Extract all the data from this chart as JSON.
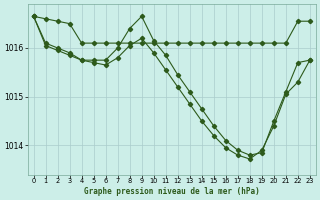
{
  "title": "Graphe pression niveau de la mer (hPa)",
  "bg_color": "#cceee8",
  "grid_color": "#aacccc",
  "line_color": "#2d5a1b",
  "xlim": [
    -0.5,
    23.5
  ],
  "ylim": [
    1013.4,
    1016.9
  ],
  "yticks": [
    1014,
    1015,
    1016
  ],
  "xticks": [
    0,
    1,
    2,
    3,
    4,
    5,
    6,
    7,
    8,
    9,
    10,
    11,
    12,
    13,
    14,
    15,
    16,
    17,
    18,
    19,
    20,
    21,
    22,
    23
  ],
  "series1": {
    "x": [
      0,
      1,
      2,
      3,
      4,
      5,
      6,
      7,
      8,
      9,
      10,
      11,
      12,
      13,
      14,
      15,
      16,
      17,
      18,
      19,
      20,
      21,
      22,
      23
    ],
    "y": [
      1016.65,
      1016.6,
      1016.55,
      1016.5,
      1016.1,
      1016.1,
      1016.1,
      1016.1,
      1016.1,
      1016.1,
      1016.1,
      1016.1,
      1016.1,
      1016.1,
      1016.1,
      1016.1,
      1016.1,
      1016.1,
      1016.1,
      1016.1,
      1016.1,
      1016.1,
      1016.55,
      1016.55
    ]
  },
  "series2": {
    "x": [
      0,
      1,
      2,
      3,
      4,
      5,
      6,
      7,
      8,
      9,
      10,
      11,
      12,
      13,
      14,
      15,
      16,
      17,
      18,
      19,
      20,
      21,
      22,
      23
    ],
    "y": [
      1016.65,
      1016.1,
      1016.0,
      1015.9,
      1015.75,
      1015.75,
      1015.75,
      1016.0,
      1016.4,
      1016.65,
      1016.15,
      1015.85,
      1015.45,
      1015.1,
      1014.75,
      1014.4,
      1014.1,
      1013.9,
      1013.8,
      1013.85,
      1014.5,
      1015.1,
      1015.7,
      1015.75
    ]
  },
  "series3": {
    "x": [
      0,
      1,
      2,
      3,
      4,
      5,
      6,
      7,
      8,
      9,
      10,
      11,
      12,
      13,
      14,
      15,
      16,
      17,
      18,
      19,
      20,
      21,
      22,
      23
    ],
    "y": [
      1016.65,
      1016.05,
      1015.95,
      1015.85,
      1015.75,
      1015.7,
      1015.65,
      1015.8,
      1016.05,
      1016.2,
      1015.9,
      1015.55,
      1015.2,
      1014.85,
      1014.5,
      1014.2,
      1013.95,
      1013.8,
      1013.72,
      1013.9,
      1014.4,
      1015.05,
      1015.3,
      1015.75
    ]
  }
}
